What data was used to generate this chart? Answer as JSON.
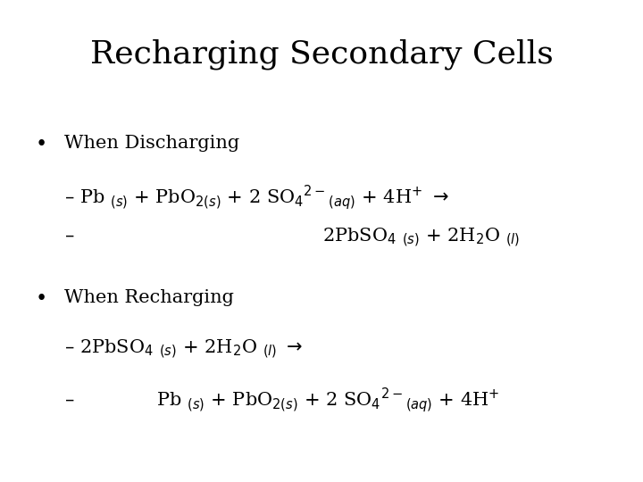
{
  "title": "Recharging Secondary Cells",
  "background_color": "#ffffff",
  "text_color": "#000000",
  "title_fontsize": 26,
  "body_fontsize": 15,
  "title_font": "DejaVu Serif",
  "body_font": "DejaVu Serif",
  "bullet1": "When Discharging",
  "bullet2": "When Recharging",
  "dash1a": "– Pb $_{(s)}$ + PbO$_{2(s)}$ + 2 SO$_{4}$$^{2-}$$_{(aq)}$ + 4H$^{+}$ $\\rightarrow$",
  "dash1b": "–                                          2PbSO$_{4}$ $_{(s)}$ + 2H$_{2}$O $_{(l)}$",
  "dash2a": "– 2PbSO$_{4}$ $_{(s)}$ + 2H$_{2}$O $_{(l)}$ $\\rightarrow$",
  "dash2b": "–              Pb $_{(s)}$ + PbO$_{2(s)}$ + 2 SO$_{4}$$^{2-}$$_{(aq)}$ + 4H$^{+}$"
}
